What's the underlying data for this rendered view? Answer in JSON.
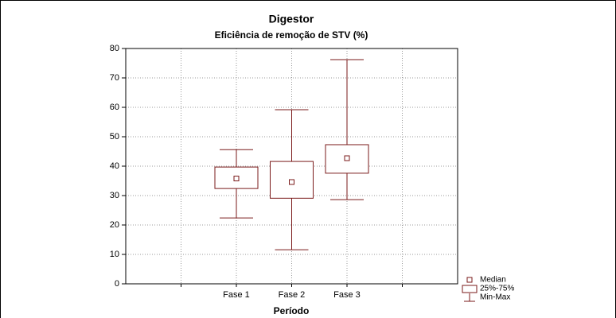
{
  "chart_data": {
    "type": "box",
    "title": "Digestor",
    "subtitle": "Eficiência de remoção de STV (%)",
    "xlabel": "Período",
    "categories": [
      "Fase 1",
      "Fase 2",
      "Fase 3"
    ],
    "boxes": [
      {
        "min": 22.4,
        "q1": 32.4,
        "median": 35.8,
        "q3": 39.7,
        "max": 45.6
      },
      {
        "min": 11.6,
        "q1": 29.1,
        "median": 34.6,
        "q3": 41.6,
        "max": 59.2
      },
      {
        "min": 28.6,
        "q1": 37.6,
        "median": 42.7,
        "q3": 47.3,
        "max": 76.2
      }
    ],
    "color": "#7a1a1a",
    "legend": [
      "Median",
      "25%-75%",
      "Min-Max"
    ],
    "legend_position": "lower right outside",
    "ylim": [
      0,
      80
    ],
    "yticks": [
      0,
      10,
      20,
      30,
      40,
      50,
      60,
      70,
      80
    ],
    "grid": true
  }
}
